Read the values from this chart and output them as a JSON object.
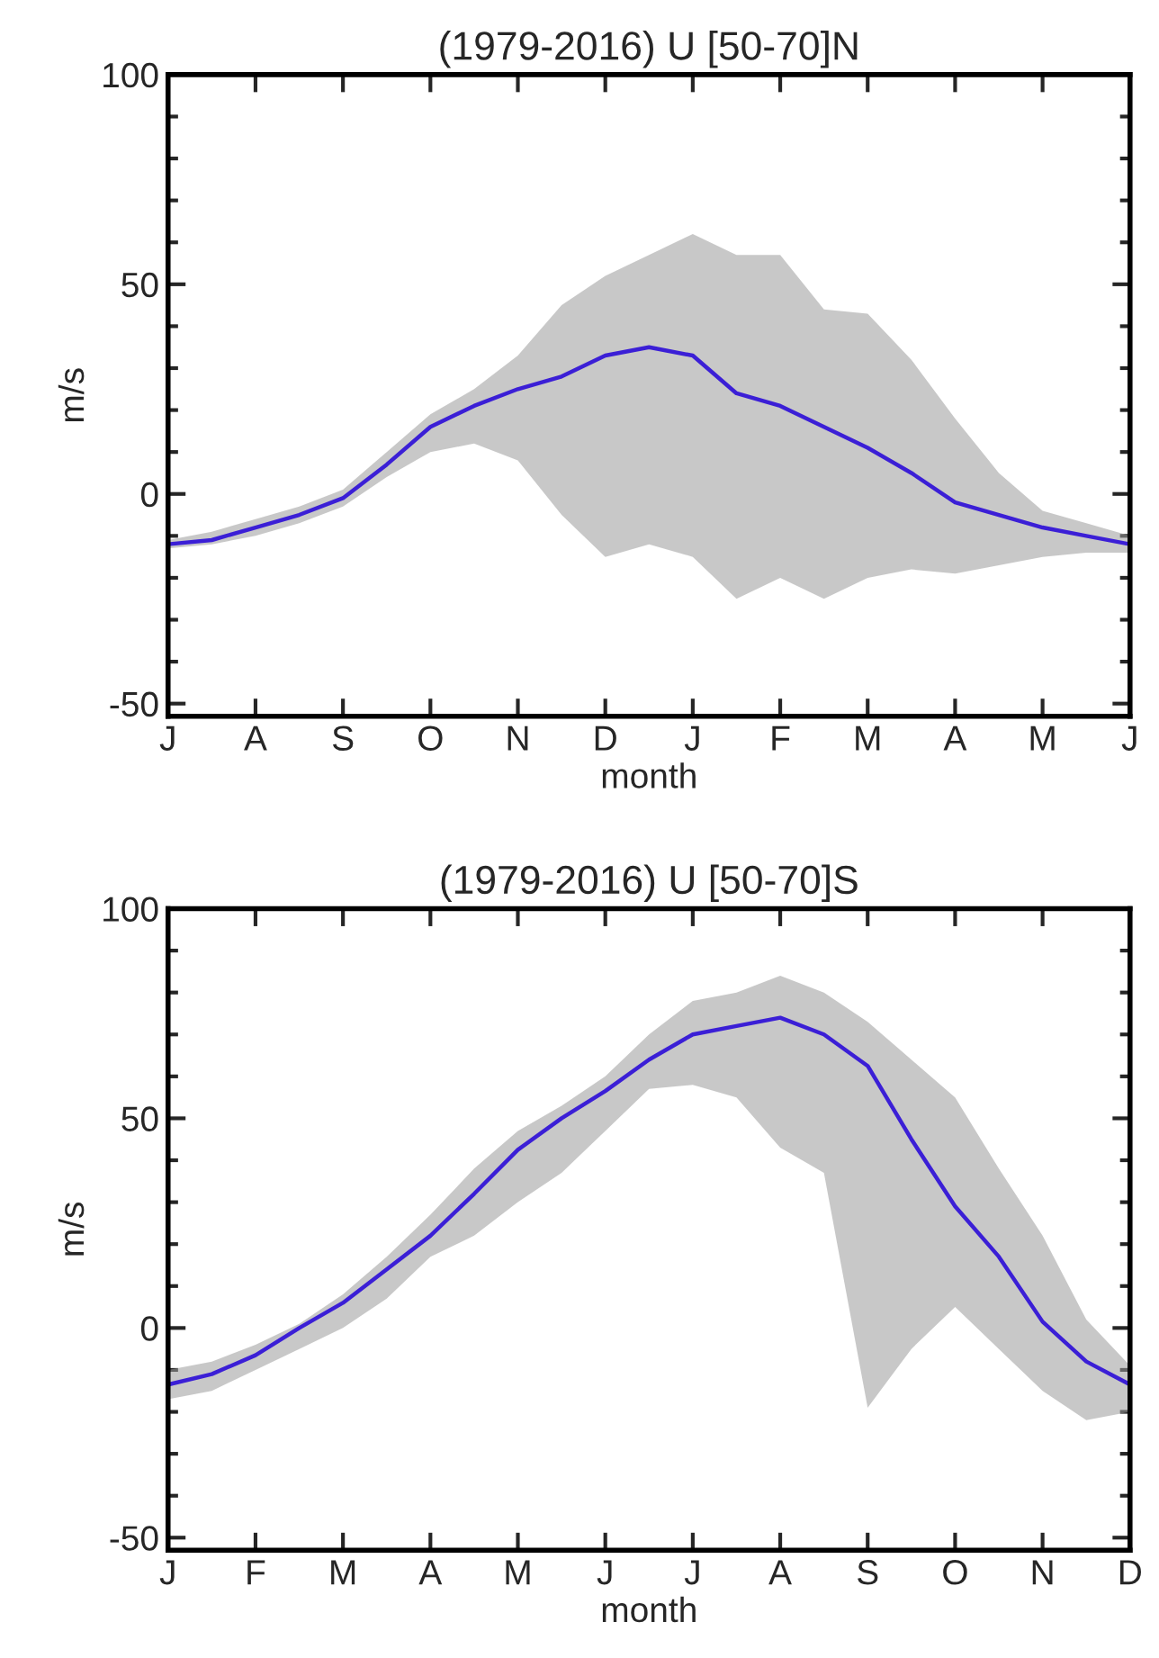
{
  "chart_data": [
    {
      "type": "line",
      "title": "(1979-2016) U [50-70]N",
      "xlabel": "month",
      "ylabel": "m/s",
      "categories": [
        "J",
        null,
        "A",
        null,
        "S",
        null,
        "O",
        null,
        "N",
        null,
        "D",
        null,
        "J",
        null,
        "F",
        null,
        "M",
        null,
        "A",
        null,
        "M",
        null,
        "J"
      ],
      "series": [
        {
          "color": "#3b1fd6",
          "values": [
            -12,
            -11,
            -8,
            -5,
            -1,
            7,
            16,
            21,
            25,
            28,
            33,
            35,
            33,
            24,
            21,
            16,
            11,
            5,
            -2,
            -5,
            -8,
            -10,
            -12
          ],
          "upper": [
            -11,
            -9,
            -6,
            -3,
            1,
            10,
            19,
            25,
            33,
            45,
            52,
            57,
            62,
            57,
            57,
            44,
            43,
            32,
            18,
            5,
            -4,
            -7,
            -10
          ],
          "lower": [
            -13,
            -12,
            -10,
            -7,
            -3,
            4,
            10,
            12,
            8,
            -5,
            -15,
            -12,
            -15,
            -25,
            -20,
            -25,
            -20,
            -18,
            -19,
            -17,
            -15,
            -14,
            -14
          ]
        }
      ],
      "ylim": [
        -53,
        100
      ],
      "yticks": [
        -50,
        0,
        50,
        100
      ],
      "grid": false,
      "line_style": "solid",
      "marker": "none"
    },
    {
      "type": "line",
      "title": "(1979-2016) U [50-70]S",
      "xlabel": "month",
      "ylabel": "m/s",
      "categories": [
        "J",
        null,
        "F",
        null,
        "M",
        null,
        "A",
        null,
        "M",
        null,
        "J",
        null,
        "J",
        null,
        "A",
        null,
        "S",
        null,
        "O",
        null,
        "N",
        null,
        "D"
      ],
      "series": [
        {
          "color": "#3b1fd6",
          "values": [
            -13.5,
            -11,
            -6.5,
            0,
            6,
            14,
            22,
            32,
            42.5,
            50,
            56.5,
            64,
            70,
            72,
            74,
            70,
            62.5,
            45,
            29,
            17,
            1.5,
            -8,
            -13.5
          ],
          "upper": [
            -10,
            -8,
            -4,
            1,
            8,
            17,
            27,
            38,
            47,
            53,
            60,
            70,
            78,
            80,
            84,
            80,
            73,
            64,
            55,
            38,
            22,
            2,
            -9
          ],
          "lower": [
            -17,
            -15,
            -10,
            -5,
            0,
            7,
            17,
            22,
            30,
            37,
            47,
            57,
            58,
            55,
            43,
            37,
            -19,
            -5,
            5,
            -5,
            -15,
            -22,
            -20
          ]
        }
      ],
      "ylim": [
        -53,
        100
      ],
      "yticks": [
        -50,
        0,
        50,
        100
      ],
      "grid": false,
      "line_style": "solid",
      "marker": "none"
    }
  ]
}
